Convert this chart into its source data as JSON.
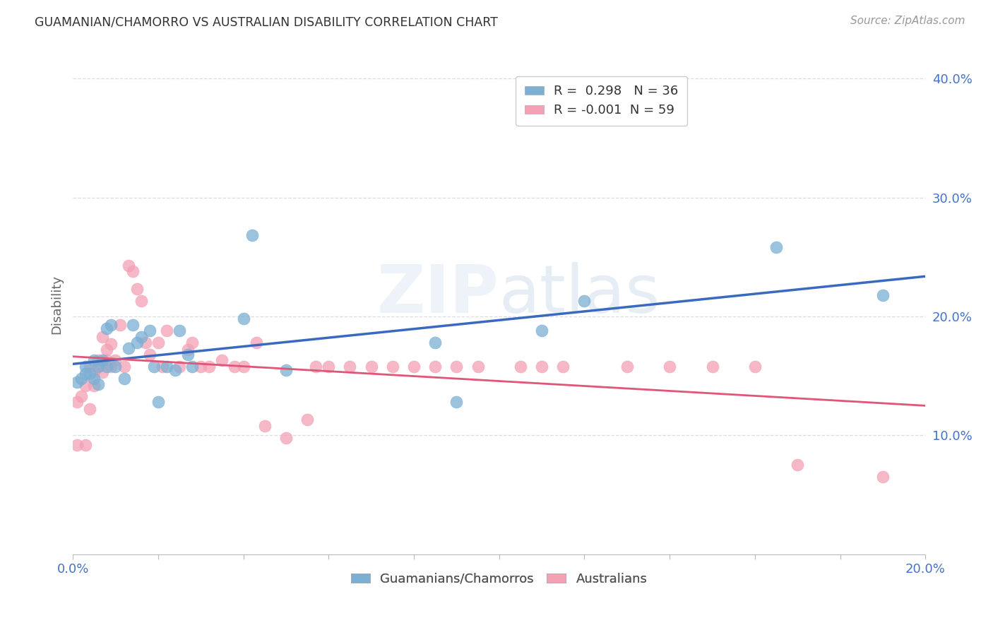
{
  "title": "GUAMANIAN/CHAMORRO VS AUSTRALIAN DISABILITY CORRELATION CHART",
  "source": "Source: ZipAtlas.com",
  "ylabel": "Disability",
  "xlim": [
    0.0,
    0.2
  ],
  "ylim": [
    0.0,
    0.42
  ],
  "xticks": [
    0.0,
    0.02,
    0.04,
    0.06,
    0.08,
    0.1,
    0.12,
    0.14,
    0.16,
    0.18,
    0.2
  ],
  "xticklabels": [
    "0.0%",
    "",
    "",
    "",
    "",
    "",
    "",
    "",
    "",
    "",
    "20.0%"
  ],
  "yticks": [
    0.1,
    0.2,
    0.3,
    0.4
  ],
  "yticklabels": [
    "10.0%",
    "20.0%",
    "30.0%",
    "40.0%"
  ],
  "guam_color": "#7bafd4",
  "aus_color": "#f4a0b5",
  "guam_line_color": "#3a6abf",
  "aus_line_color": "#e05578",
  "legend_R_guam": "0.298",
  "legend_N_guam": "36",
  "legend_R_aus": "-0.001",
  "legend_N_aus": "59",
  "background_color": "#ffffff",
  "grid_color": "#dddddd",
  "guam_x": [
    0.001,
    0.002,
    0.003,
    0.003,
    0.004,
    0.005,
    0.005,
    0.006,
    0.006,
    0.007,
    0.008,
    0.008,
    0.009,
    0.01,
    0.012,
    0.013,
    0.014,
    0.015,
    0.016,
    0.018,
    0.019,
    0.02,
    0.022,
    0.024,
    0.025,
    0.027,
    0.028,
    0.04,
    0.042,
    0.05,
    0.085,
    0.09,
    0.11,
    0.12,
    0.165,
    0.19
  ],
  "guam_y": [
    0.145,
    0.148,
    0.152,
    0.158,
    0.152,
    0.148,
    0.163,
    0.158,
    0.143,
    0.163,
    0.158,
    0.19,
    0.193,
    0.158,
    0.148,
    0.173,
    0.193,
    0.178,
    0.183,
    0.188,
    0.158,
    0.128,
    0.158,
    0.155,
    0.188,
    0.168,
    0.158,
    0.198,
    0.268,
    0.155,
    0.178,
    0.128,
    0.188,
    0.213,
    0.258,
    0.218
  ],
  "aus_x": [
    0.001,
    0.001,
    0.002,
    0.003,
    0.003,
    0.004,
    0.004,
    0.005,
    0.005,
    0.006,
    0.006,
    0.007,
    0.007,
    0.008,
    0.008,
    0.009,
    0.009,
    0.01,
    0.011,
    0.012,
    0.013,
    0.014,
    0.015,
    0.016,
    0.017,
    0.018,
    0.02,
    0.021,
    0.022,
    0.025,
    0.027,
    0.028,
    0.03,
    0.032,
    0.035,
    0.038,
    0.04,
    0.043,
    0.045,
    0.05,
    0.055,
    0.057,
    0.06,
    0.065,
    0.07,
    0.075,
    0.08,
    0.085,
    0.09,
    0.095,
    0.105,
    0.11,
    0.115,
    0.13,
    0.14,
    0.15,
    0.16,
    0.17,
    0.19
  ],
  "aus_y": [
    0.128,
    0.092,
    0.133,
    0.142,
    0.092,
    0.158,
    0.122,
    0.153,
    0.142,
    0.158,
    0.163,
    0.183,
    0.153,
    0.163,
    0.172,
    0.177,
    0.158,
    0.163,
    0.193,
    0.158,
    0.243,
    0.238,
    0.223,
    0.213,
    0.178,
    0.168,
    0.178,
    0.158,
    0.188,
    0.158,
    0.172,
    0.178,
    0.158,
    0.158,
    0.163,
    0.158,
    0.158,
    0.178,
    0.108,
    0.098,
    0.113,
    0.158,
    0.158,
    0.158,
    0.158,
    0.158,
    0.158,
    0.158,
    0.158,
    0.158,
    0.158,
    0.158,
    0.158,
    0.158,
    0.158,
    0.158,
    0.158,
    0.075,
    0.065
  ]
}
